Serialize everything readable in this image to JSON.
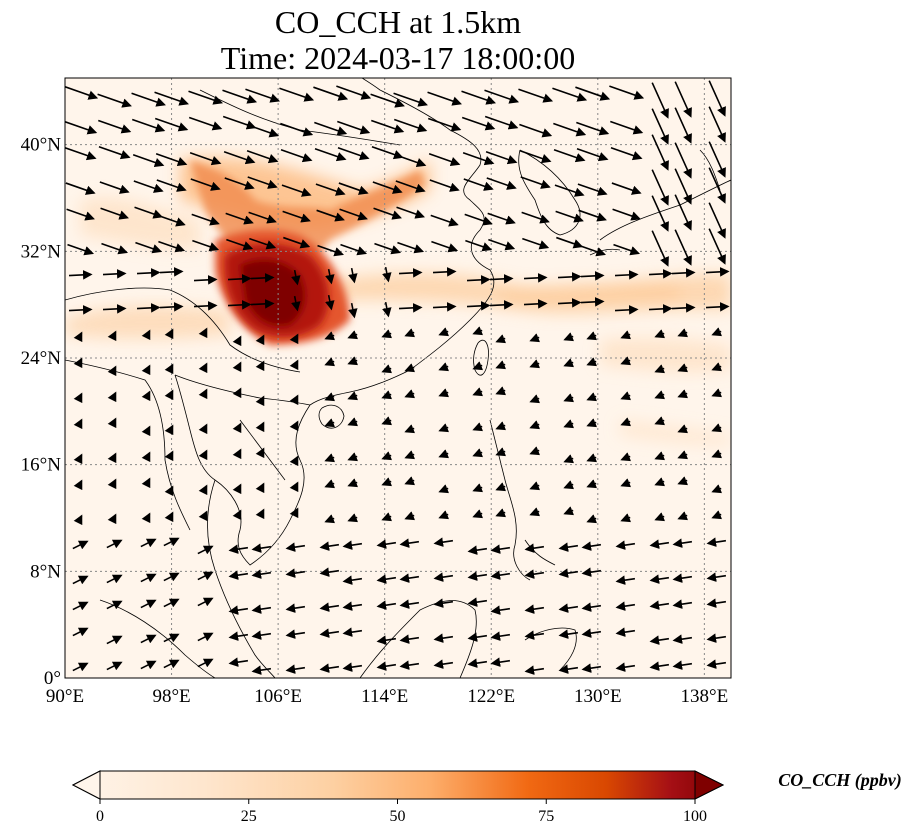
{
  "title": {
    "line1": "CO_CCH at 1.5km",
    "line2": "Time: 2024-03-17 18:00:00"
  },
  "map": {
    "lon_range": [
      90,
      140
    ],
    "lat_range": [
      0,
      45
    ],
    "lon_ticks": [
      {
        "value": 90,
        "label": "90°E"
      },
      {
        "value": 98,
        "label": "98°E"
      },
      {
        "value": 106,
        "label": "106°E"
      },
      {
        "value": 114,
        "label": "114°E"
      },
      {
        "value": 122,
        "label": "122°E"
      },
      {
        "value": 130,
        "label": "130°E"
      },
      {
        "value": 138,
        "label": "138°E"
      }
    ],
    "lat_ticks": [
      {
        "value": 0,
        "label": "0°"
      },
      {
        "value": 8,
        "label": "8°N"
      },
      {
        "value": 16,
        "label": "16°N"
      },
      {
        "value": 24,
        "label": "24°N"
      },
      {
        "value": 32,
        "label": "32°N"
      },
      {
        "value": 40,
        "label": "40°N"
      }
    ],
    "grid": true,
    "colormap": [
      "#fff5eb",
      "#fdd0a2",
      "#fd8d3c",
      "#d94801",
      "#a50f15",
      "#7f0000"
    ]
  },
  "colorbar": {
    "label": "CO_CCH (ppbv)",
    "range": [
      0,
      100
    ],
    "ticks": [
      {
        "value": 0,
        "label": "0"
      },
      {
        "value": 25,
        "label": "25"
      },
      {
        "value": 50,
        "label": "50"
      },
      {
        "value": 75,
        "label": "75"
      },
      {
        "value": 100,
        "label": "100"
      }
    ]
  }
}
